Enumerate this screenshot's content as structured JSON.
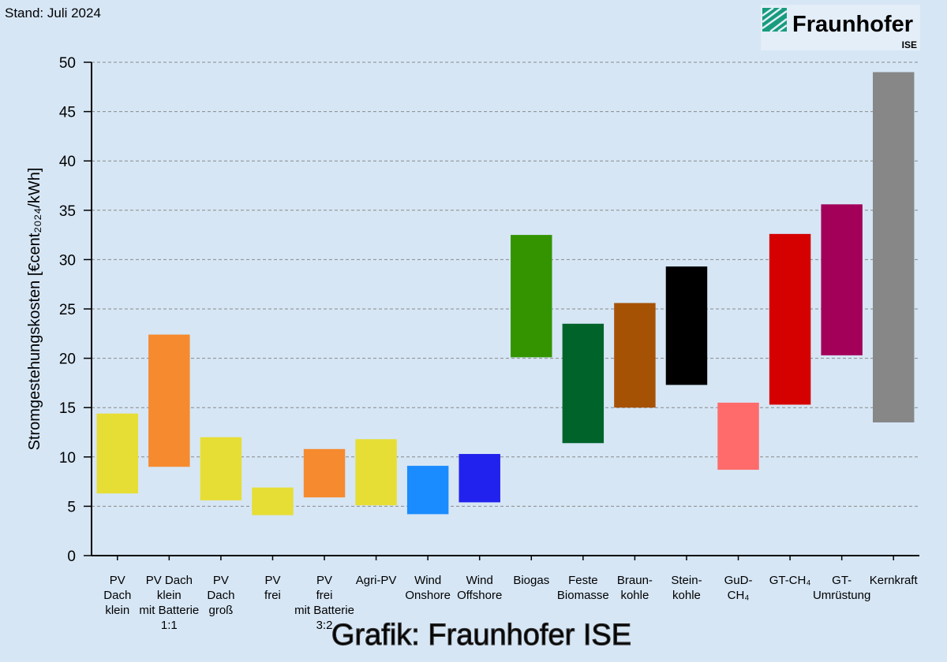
{
  "chart_data": {
    "type": "range_bar",
    "stand": "Stand: Juli 2024",
    "logo": {
      "name": "Fraunhofer",
      "institute": "ISE"
    },
    "y_label": "Stromgestehungskosten [€cent₂₀₂₄/kWh]",
    "footer": "Grafik: Fraunhofer ISE",
    "categories": [
      [
        "PV",
        "Dach",
        "klein"
      ],
      [
        "PV Dach",
        "klein",
        "mit Batterie",
        "1:1"
      ],
      [
        "PV",
        "Dach",
        "groß"
      ],
      [
        "PV",
        "frei"
      ],
      [
        "PV",
        "frei",
        "mit Batterie",
        "3:2"
      ],
      [
        "Agri-PV"
      ],
      [
        "Wind",
        "Onshore"
      ],
      [
        "Wind",
        "Offshore"
      ],
      [
        "Biogas"
      ],
      [
        "Feste",
        "Biomasse"
      ],
      [
        "Braun-",
        "kohle"
      ],
      [
        "Stein-",
        "kohle"
      ],
      [
        "GuD-",
        "CH₄"
      ],
      [
        "GT-CH₄"
      ],
      [
        "GT-",
        "Umrüstung"
      ],
      [
        "Kernkraft"
      ]
    ],
    "low": [
      6.3,
      9.0,
      5.6,
      4.1,
      5.9,
      5.1,
      4.2,
      5.4,
      20.1,
      11.4,
      15.0,
      17.3,
      8.7,
      15.3,
      20.3,
      13.5
    ],
    "high": [
      14.4,
      22.4,
      12.0,
      6.9,
      10.8,
      11.8,
      9.1,
      10.3,
      32.5,
      23.5,
      25.6,
      29.3,
      15.5,
      32.6,
      35.6,
      49.0
    ],
    "colors": [
      "#e6de35",
      "#f68a2e",
      "#e6de35",
      "#e6de35",
      "#f68a2e",
      "#e6de35",
      "#1a8cff",
      "#2222ee",
      "#339400",
      "#00632a",
      "#a65205",
      "#000000",
      "#ff6b6b",
      "#d50000",
      "#a3005a",
      "#878787"
    ],
    "ylim": [
      0,
      50
    ],
    "yticks": [
      0,
      5,
      10,
      15,
      20,
      25,
      30,
      35,
      40,
      45,
      50
    ],
    "grid": true
  }
}
